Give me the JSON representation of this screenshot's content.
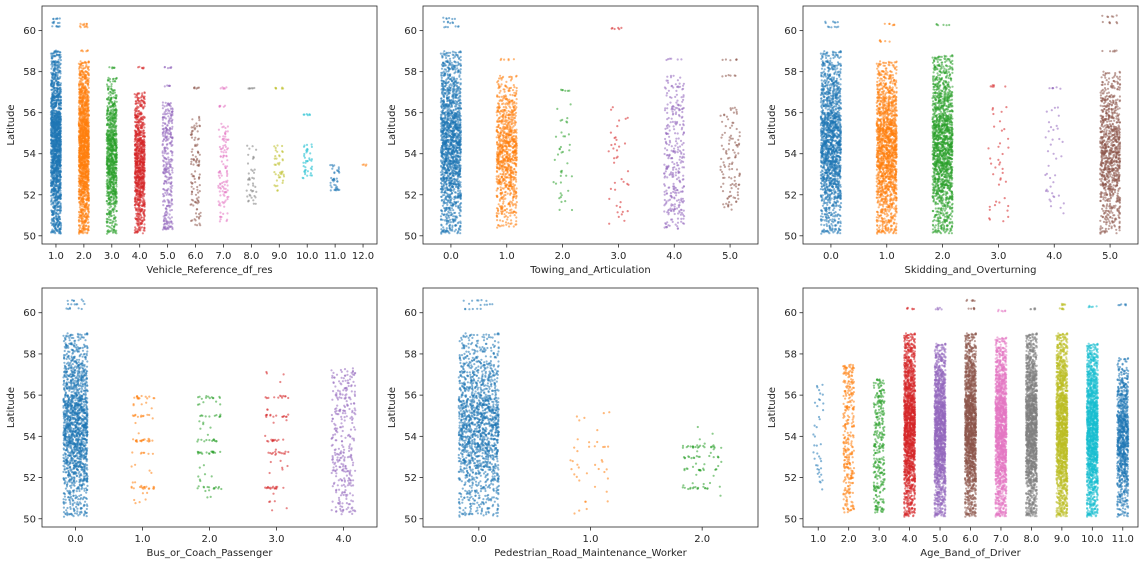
{
  "palette": [
    "#1f77b4",
    "#ff7f0e",
    "#2ca02c",
    "#d62728",
    "#9467bd",
    "#8c564b",
    "#e377c2",
    "#7f7f7f",
    "#bcbd22",
    "#17becf",
    "#1f77b4",
    "#ff7f0e"
  ],
  "chart_data": [
    {
      "type": "scatter",
      "title": "",
      "xlabel": "Vehicle_Reference_df_res",
      "ylabel": "Latitude",
      "ylim": [
        49.6,
        61.2
      ],
      "yticks": [
        50,
        52,
        54,
        56,
        58,
        60
      ],
      "ytick_labels": [
        "50",
        "52",
        "54",
        "56",
        "58",
        "60"
      ],
      "categories": [
        "1.0",
        "2.0",
        "3.0",
        "4.0",
        "5.0",
        "6.0",
        "7.0",
        "8.0",
        "9.0",
        "10.0",
        "11.0",
        "12.0"
      ],
      "series": [
        {
          "category": "1.0",
          "y_range": [
            50.1,
            59.0
          ],
          "density": "very high",
          "extra_points": [
            60.2,
            60.4,
            60.6,
            59.0
          ]
        },
        {
          "category": "2.0",
          "y_range": [
            50.1,
            58.5
          ],
          "density": "very high",
          "extra_points": [
            60.2,
            60.3,
            59.0
          ]
        },
        {
          "category": "3.0",
          "y_range": [
            50.1,
            57.7
          ],
          "density": "high",
          "extra_points": [
            58.2
          ]
        },
        {
          "category": "4.0",
          "y_range": [
            50.1,
            57.0
          ],
          "density": "high",
          "extra_points": [
            58.2
          ]
        },
        {
          "category": "5.0",
          "y_range": [
            50.3,
            56.5
          ],
          "density": "medium",
          "extra_points": [
            58.2,
            57.3
          ]
        },
        {
          "category": "6.0",
          "y_range": [
            50.5,
            55.8
          ],
          "density": "low",
          "extra_points": [
            57.2
          ]
        },
        {
          "category": "7.0",
          "y_range": [
            50.7,
            55.5
          ],
          "density": "low",
          "extra_points": [
            57.2,
            56.3
          ]
        },
        {
          "category": "8.0",
          "y_range": [
            51.5,
            54.5
          ],
          "density": "sparse",
          "extra_points": [
            57.2
          ]
        },
        {
          "category": "9.0",
          "y_range": [
            52.2,
            54.5
          ],
          "density": "sparse",
          "extra_points": [
            57.2
          ]
        },
        {
          "category": "10.0",
          "y_range": [
            52.8,
            54.5
          ],
          "density": "sparse",
          "extra_points": [
            55.9
          ]
        },
        {
          "category": "11.0",
          "y_range": [
            52.2,
            53.5
          ],
          "density": "sparse",
          "extra_points": []
        },
        {
          "category": "12.0",
          "y_range": [
            53.4,
            53.5
          ],
          "density": "single",
          "extra_points": []
        }
      ]
    },
    {
      "type": "scatter",
      "title": "",
      "xlabel": "Towing_and_Articulation",
      "ylabel": "Latitude",
      "ylim": [
        49.6,
        61.2
      ],
      "yticks": [
        50,
        52,
        54,
        56,
        58,
        60
      ],
      "ytick_labels": [
        "50",
        "52",
        "54",
        "56",
        "58",
        "60"
      ],
      "categories": [
        "0.0",
        "1.0",
        "2.0",
        "3.0",
        "4.0",
        "5.0"
      ],
      "series": [
        {
          "category": "0.0",
          "y_range": [
            50.1,
            59.0
          ],
          "density": "very high",
          "extra_points": [
            60.2,
            60.4,
            60.6
          ]
        },
        {
          "category": "1.0",
          "y_range": [
            50.4,
            57.8
          ],
          "density": "high",
          "extra_points": [
            58.6
          ]
        },
        {
          "category": "2.0",
          "y_range": [
            51.0,
            56.8
          ],
          "density": "sparse",
          "extra_points": [
            57.1
          ]
        },
        {
          "category": "3.0",
          "y_range": [
            50.3,
            56.3
          ],
          "density": "sparse",
          "extra_points": [
            60.1
          ]
        },
        {
          "category": "4.0",
          "y_range": [
            50.3,
            57.8
          ],
          "density": "medium",
          "extra_points": [
            58.6
          ]
        },
        {
          "category": "5.0",
          "y_range": [
            51.2,
            56.3
          ],
          "density": "low",
          "extra_points": [
            58.6,
            57.8
          ]
        }
      ]
    },
    {
      "type": "scatter",
      "title": "",
      "xlabel": "Skidding_and_Overturning",
      "ylabel": "Latitude",
      "ylim": [
        49.6,
        61.2
      ],
      "yticks": [
        50,
        52,
        54,
        56,
        58,
        60
      ],
      "ytick_labels": [
        "50",
        "52",
        "54",
        "56",
        "58",
        "60"
      ],
      "categories": [
        "0.0",
        "1.0",
        "2.0",
        "3.0",
        "4.0",
        "5.0"
      ],
      "series": [
        {
          "category": "0.0",
          "y_range": [
            50.1,
            59.0
          ],
          "density": "very high",
          "extra_points": [
            60.2,
            60.4
          ]
        },
        {
          "category": "1.0",
          "y_range": [
            50.1,
            58.5
          ],
          "density": "very high",
          "extra_points": [
            60.3,
            59.5
          ]
        },
        {
          "category": "2.0",
          "y_range": [
            50.1,
            58.8
          ],
          "density": "very high",
          "extra_points": [
            60.3
          ]
        },
        {
          "category": "3.0",
          "y_range": [
            50.7,
            56.3
          ],
          "density": "sparse",
          "extra_points": [
            57.3
          ]
        },
        {
          "category": "4.0",
          "y_range": [
            50.8,
            56.3
          ],
          "density": "sparse",
          "extra_points": [
            57.2
          ]
        },
        {
          "category": "5.0",
          "y_range": [
            50.1,
            58.0
          ],
          "density": "high",
          "extra_points": [
            60.7,
            60.4,
            59.0
          ]
        }
      ]
    },
    {
      "type": "scatter",
      "title": "",
      "xlabel": "Bus_or_Coach_Passenger",
      "ylabel": "Latitude",
      "ylim": [
        49.6,
        61.2
      ],
      "yticks": [
        50,
        52,
        54,
        56,
        58,
        60
      ],
      "ytick_labels": [
        "50",
        "52",
        "54",
        "56",
        "58",
        "60"
      ],
      "categories": [
        "0.0",
        "1.0",
        "2.0",
        "3.0",
        "4.0"
      ],
      "series": [
        {
          "category": "0.0",
          "y_range": [
            50.1,
            59.0
          ],
          "density": "very high",
          "extra_points": [
            60.2,
            60.4,
            60.6
          ]
        },
        {
          "category": "1.0",
          "y_range": [
            50.7,
            56.0
          ],
          "density": "banded",
          "extra_points": []
        },
        {
          "category": "2.0",
          "y_range": [
            50.7,
            56.0
          ],
          "density": "banded",
          "extra_points": []
        },
        {
          "category": "3.0",
          "y_range": [
            50.2,
            57.2
          ],
          "density": "banded",
          "extra_points": []
        },
        {
          "category": "4.0",
          "y_range": [
            50.2,
            57.3
          ],
          "density": "medium",
          "extra_points": []
        }
      ]
    },
    {
      "type": "scatter",
      "title": "",
      "xlabel": "Pedestrian_Road_Maintenance_Worker",
      "ylabel": "Latitude",
      "ylim": [
        49.6,
        61.2
      ],
      "yticks": [
        50,
        52,
        54,
        56,
        58,
        60
      ],
      "ytick_labels": [
        "50",
        "52",
        "54",
        "56",
        "58",
        "60"
      ],
      "categories": [
        "0.0",
        "1.0",
        "2.0"
      ],
      "series": [
        {
          "category": "0.0",
          "y_range": [
            50.1,
            59.0
          ],
          "density": "very high",
          "extra_points": [
            60.2,
            60.4,
            60.6
          ]
        },
        {
          "category": "1.0",
          "y_range": [
            50.2,
            55.4
          ],
          "density": "sparse",
          "extra_points": []
        },
        {
          "category": "2.0",
          "y_range": [
            51.0,
            54.6
          ],
          "density": "banded",
          "extra_points": []
        }
      ]
    },
    {
      "type": "scatter",
      "title": "",
      "xlabel": "Age_Band_of_Driver",
      "ylabel": "Latitude",
      "ylim": [
        49.6,
        61.2
      ],
      "yticks": [
        50,
        52,
        54,
        56,
        58,
        60
      ],
      "ytick_labels": [
        "50",
        "52",
        "54",
        "56",
        "58",
        "60"
      ],
      "categories": [
        "1.0",
        "2.0",
        "3.0",
        "4.0",
        "5.0",
        "6.0",
        "7.0",
        "8.0",
        "9.0",
        "10.0",
        "11.0"
      ],
      "series": [
        {
          "category": "1.0",
          "y_range": [
            51.4,
            56.5
          ],
          "density": "sparse",
          "extra_points": []
        },
        {
          "category": "2.0",
          "y_range": [
            50.3,
            57.5
          ],
          "density": "medium",
          "extra_points": []
        },
        {
          "category": "3.0",
          "y_range": [
            50.3,
            56.8
          ],
          "density": "medium",
          "extra_points": []
        },
        {
          "category": "4.0",
          "y_range": [
            50.1,
            59.0
          ],
          "density": "very high",
          "extra_points": [
            60.2
          ]
        },
        {
          "category": "5.0",
          "y_range": [
            50.1,
            58.5
          ],
          "density": "very high",
          "extra_points": [
            60.2
          ]
        },
        {
          "category": "6.0",
          "y_range": [
            50.1,
            59.0
          ],
          "density": "very high",
          "extra_points": [
            60.2,
            60.6
          ]
        },
        {
          "category": "7.0",
          "y_range": [
            50.1,
            58.8
          ],
          "density": "very high",
          "extra_points": [
            60.1
          ]
        },
        {
          "category": "8.0",
          "y_range": [
            50.1,
            59.0
          ],
          "density": "very high",
          "extra_points": [
            60.2
          ]
        },
        {
          "category": "9.0",
          "y_range": [
            50.1,
            59.0
          ],
          "density": "very high",
          "extra_points": [
            60.4,
            60.2
          ]
        },
        {
          "category": "10.0",
          "y_range": [
            50.1,
            58.5
          ],
          "density": "very high",
          "extra_points": [
            60.3
          ]
        },
        {
          "category": "11.0",
          "y_range": [
            50.1,
            57.8
          ],
          "density": "high",
          "extra_points": [
            60.4
          ]
        }
      ]
    }
  ]
}
